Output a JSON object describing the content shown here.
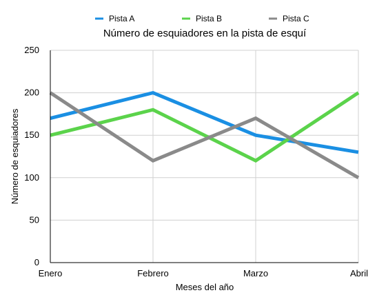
{
  "chart_data": {
    "type": "line",
    "title": "Número de esquiadores en la pista de esquí",
    "xlabel": "Meses del año",
    "ylabel": "Número de esquiadores",
    "categories": [
      "Enero",
      "Febrero",
      "Marzo",
      "Abril"
    ],
    "ylim": [
      0,
      250
    ],
    "yticks": [
      0,
      50,
      100,
      150,
      200,
      250
    ],
    "grid": true,
    "legend_position": "top",
    "series": [
      {
        "name": "Pista A",
        "color": "#1a8fe3",
        "values": [
          170,
          200,
          150,
          130
        ]
      },
      {
        "name": "Pista B",
        "color": "#5bd34b",
        "values": [
          150,
          180,
          120,
          200
        ]
      },
      {
        "name": "Pista C",
        "color": "#8a8a8a",
        "values": [
          200,
          120,
          170,
          100
        ]
      }
    ]
  }
}
